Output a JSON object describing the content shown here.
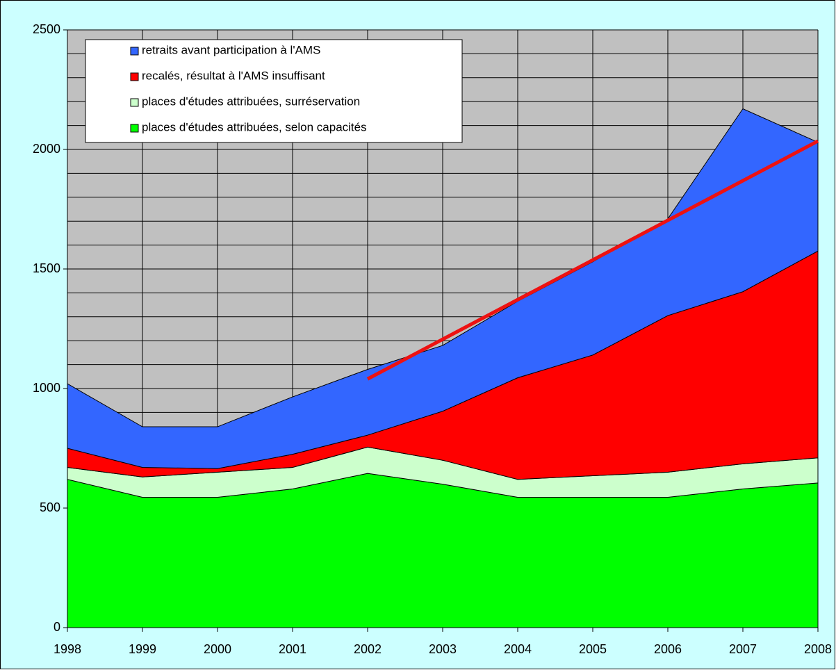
{
  "chart_data": {
    "type": "stacked_area",
    "x": [
      1998,
      1999,
      2000,
      2001,
      2002,
      2003,
      2004,
      2005,
      2006,
      2007,
      2008
    ],
    "xlim": [
      1998,
      2008
    ],
    "xticks": [
      1998,
      1999,
      2000,
      2001,
      2002,
      2003,
      2004,
      2005,
      2006,
      2007,
      2008
    ],
    "ylim": [
      0,
      2500
    ],
    "yticks": [
      0,
      500,
      1000,
      1500,
      2000,
      2500
    ],
    "minor_grid_step": 100,
    "grid": true,
    "legend": "top-left",
    "series": [
      {
        "name": "places d'études attribuées, selon capacités",
        "color": "#00ff00",
        "values": [
          620,
          545,
          545,
          580,
          645,
          600,
          545,
          545,
          545,
          580,
          605
        ]
      },
      {
        "name": "places d'études attribuées, surréservation",
        "color": "#ccffcc",
        "values": [
          50,
          85,
          105,
          90,
          110,
          100,
          75,
          90,
          105,
          105,
          105
        ]
      },
      {
        "name": "recalés, résultat à l'AMS insuffisant",
        "color": "#ff0000",
        "values": [
          80,
          40,
          15,
          55,
          50,
          205,
          425,
          505,
          655,
          720,
          865
        ]
      },
      {
        "name": "retraits avant participation à l'AMS",
        "color": "#3366ff",
        "values": [
          270,
          170,
          175,
          240,
          275,
          275,
          320,
          390,
          405,
          765,
          455
        ]
      }
    ],
    "trend": {
      "x": [
        2002,
        2008
      ],
      "values": [
        1040,
        2035
      ],
      "color": "#ee1111"
    }
  }
}
